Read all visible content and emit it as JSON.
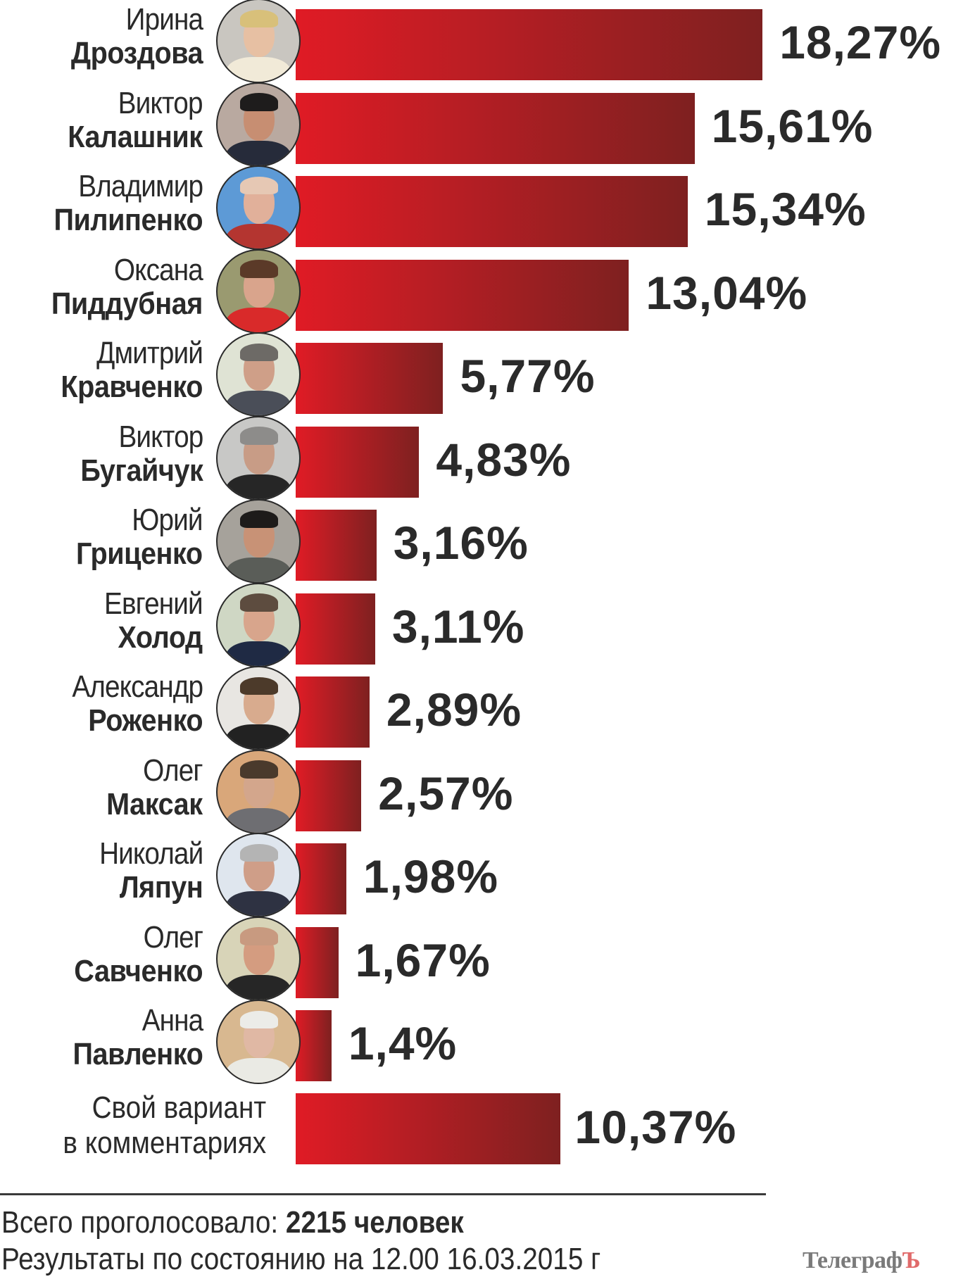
{
  "chart_data": {
    "type": "bar",
    "orientation": "horizontal",
    "title": "",
    "xlabel": "",
    "ylabel": "",
    "unit": "%",
    "grid": false,
    "legend": null,
    "categories": [
      "Ирина Дроздова",
      "Виктор Калашник",
      "Владимир Пилипенко",
      "Оксана Пиддубная",
      "Дмитрий Кравченко",
      "Виктор Бугайчук",
      "Юрий Гриценко",
      "Евгений Холод",
      "Александр Роженко",
      "Олег Максак",
      "Николай Ляпун",
      "Олег Савченко",
      "Анна Павленко",
      "Свой вариант в комментариях"
    ],
    "values": [
      18.27,
      15.61,
      15.34,
      13.04,
      5.77,
      4.83,
      3.16,
      3.11,
      2.89,
      2.57,
      1.98,
      1.67,
      1.4,
      10.37
    ],
    "value_labels": [
      "18,27%",
      "15,61%",
      "15,34%",
      "13,04%",
      "5,77%",
      "4,83%",
      "3,16%",
      "3,11%",
      "2,89%",
      "2,57%",
      "1,98%",
      "1,67%",
      "1,4%",
      "10,37%"
    ],
    "bar_gradient": [
      "#e01b25",
      "#7e2020"
    ]
  },
  "rows": [
    {
      "first": "Ирина",
      "last": "Дроздова",
      "label": "18,27%",
      "avatar": {
        "bg": "#c9c6c0",
        "hair": "#d8c07a",
        "face": "#e7c0a3",
        "body": "#f1ead8"
      }
    },
    {
      "first": "Виктор",
      "last": "Калашник",
      "label": "15,61%",
      "avatar": {
        "bg": "#b9a9a0",
        "hair": "#1e1c1c",
        "face": "#c78e72",
        "body": "#262b3a"
      }
    },
    {
      "first": "Владимир",
      "last": "Пилипенко",
      "label": "15,34%",
      "avatar": {
        "bg": "#5d9ad6",
        "hair": "#e6c8b4",
        "face": "#e1b09a",
        "body": "#b43530"
      }
    },
    {
      "first": "Оксана",
      "last": "Пиддубная",
      "label": "13,04%",
      "avatar": {
        "bg": "#9a9a70",
        "hair": "#5b3a28",
        "face": "#d9a48c",
        "body": "#d92a2a"
      }
    },
    {
      "first": "Дмитрий",
      "last": "Кравченко",
      "label": "5,77%",
      "avatar": {
        "bg": "#dfe3d4",
        "hair": "#6d6a66",
        "face": "#cf9f88",
        "body": "#4a4e58"
      }
    },
    {
      "first": "Виктор",
      "last": "Бугайчук",
      "label": "4,83%",
      "avatar": {
        "bg": "#c8c8c6",
        "hair": "#8d8c8a",
        "face": "#c89c86",
        "body": "#262626"
      }
    },
    {
      "first": "Юрий",
      "last": "Гриценко",
      "label": "3,16%",
      "avatar": {
        "bg": "#a6a29b",
        "hair": "#1d1b1a",
        "face": "#c89276",
        "body": "#5a5d58"
      }
    },
    {
      "first": "Евгений",
      "last": "Холод",
      "label": "3,11%",
      "avatar": {
        "bg": "#cfd7c4",
        "hair": "#5d4c3f",
        "face": "#d8a58c",
        "body": "#1f2a44"
      }
    },
    {
      "first": "Александр",
      "last": "Роженко",
      "label": "2,89%",
      "avatar": {
        "bg": "#e8e6e2",
        "hair": "#4c3a2a",
        "face": "#d8ab8e",
        "body": "#222222"
      }
    },
    {
      "first": "Олег",
      "last": "Максак",
      "label": "2,57%",
      "avatar": {
        "bg": "#d9a77a",
        "hair": "#4a3a2c",
        "face": "#d3a68c",
        "body": "#6e6e72"
      }
    },
    {
      "first": "Николай",
      "last": "Ляпун",
      "label": "1,98%",
      "avatar": {
        "bg": "#dfe6ee",
        "hair": "#b4b4b4",
        "face": "#cf9e88",
        "body": "#2e3242"
      }
    },
    {
      "first": "Олег",
      "last": "Савченко",
      "label": "1,67%",
      "avatar": {
        "bg": "#d8d4b8",
        "hair": "#c89a80",
        "face": "#d49c80",
        "body": "#262626"
      }
    },
    {
      "first": "Анна",
      "last": "Павленко",
      "label": "1,4%",
      "avatar": {
        "bg": "#d8b890",
        "hair": "#ecece8",
        "face": "#e0b8a4",
        "body": "#eaeae4"
      }
    }
  ],
  "other": {
    "line1": "Свой вариант",
    "line2": "в комментариях",
    "label": "10,37%"
  },
  "footer": {
    "total_prefix": "Всего проголосовало: ",
    "total_value": "2215 человек",
    "results_line": "Результаты по состоянию на 12.00 16.03.2015 г",
    "logo_main": "Телеграф",
    "logo_accent": "Ъ"
  }
}
